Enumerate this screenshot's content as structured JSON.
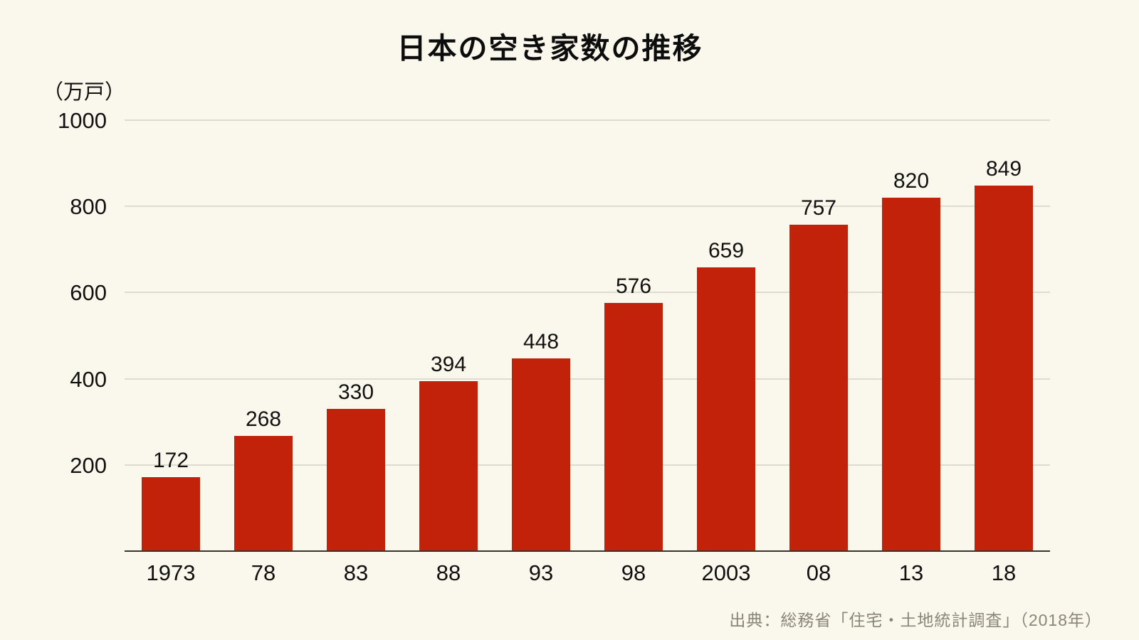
{
  "title": "日本の空き家数の推移",
  "source": "出典：総務省「住宅・土地統計調査」（2018年）",
  "colors": {
    "background": "#faf8ec",
    "bar": "#c2220a",
    "gridline": "#dedbd0",
    "axis_line": "#38342c",
    "text": "#111111",
    "source_text": "#8b8577"
  },
  "chart_data": {
    "type": "bar",
    "title": "日本の空き家数の推移",
    "categories": [
      "1973",
      "78",
      "83",
      "88",
      "93",
      "98",
      "2003",
      "08",
      "13",
      "18"
    ],
    "values": [
      172,
      268,
      330,
      394,
      448,
      576,
      659,
      757,
      820,
      849
    ],
    "xlabel": "",
    "ylabel": "（万戸）",
    "ylim": [
      0,
      1000
    ],
    "yticks": [
      200,
      400,
      600,
      800,
      1000
    ],
    "grid": true,
    "legend": "none",
    "bar_color": "#c2220a",
    "value_labels_shown": true
  }
}
